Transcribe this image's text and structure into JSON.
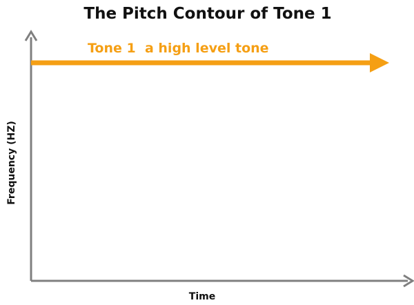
{
  "title": "The Pitch Contour of Tone 1",
  "tone_label": "Tone 1  a high level tone",
  "x_axis_label": "Time",
  "y_axis_label": "Frequency (HZ)",
  "colors": {
    "axis": "#7f7f7f",
    "contour": "#f59f14",
    "text": "#111111",
    "background": "#ffffff"
  }
}
